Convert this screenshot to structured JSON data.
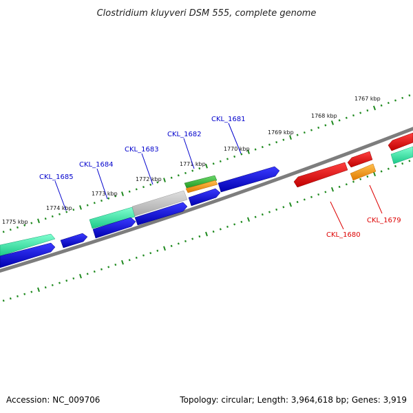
{
  "title": "Clostridium kluyveri DSM 555, complete genome",
  "accession": "Accession: NC_009706",
  "summary": "Topology: circular; Length: 3,964,618 bp; Genes: 3,919",
  "kbp_ticks": [
    "1775 kbp",
    "1774 kbp",
    "1773 kbp",
    "1772 kbp",
    "1771 kbp",
    "1770 kbp",
    "1769 kbp",
    "1768 kbp",
    "1767 kbp"
  ],
  "gene_labels_top": [
    "CKL_1685",
    "CKL_1684",
    "CKL_1683",
    "CKL_1682",
    "CKL_1681"
  ],
  "gene_labels_bottom": [
    "CKL_1680",
    "CKL_1679"
  ],
  "colors": {
    "backbone": "#7d7d7d",
    "tick": "#1f8a1f",
    "cds_forward": "#0000dd",
    "cds_reverse": "#ee0000",
    "teal_feature": "#2ed99a",
    "gray_feature": "#bdbdbd",
    "green_feature": "#3cb83c",
    "orange_feature": "#f59a1e",
    "label_forward": "#0000cc",
    "label_reverse": "#dd0000"
  }
}
